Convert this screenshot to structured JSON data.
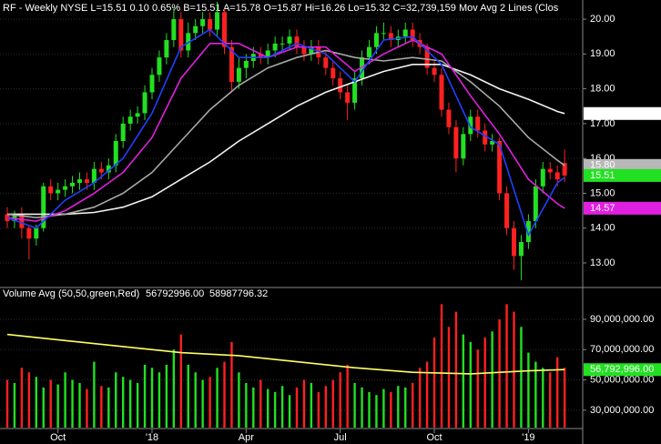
{
  "chart_data": {
    "type": "candlestick",
    "header": "RF - Weekly  NYSE  L=15.51  0.10  0.65%  B=15.51  A=15.78  O=15.87  Hi=16.26  Lo=15.32  C=32,739,159  Mov Avg 2 Lines (Clos",
    "header_color": "#22dd22",
    "categories": [
      null,
      null,
      null,
      null,
      null,
      null,
      null,
      "Oct",
      null,
      null,
      null,
      null,
      null,
      null,
      null,
      null,
      null,
      null,
      null,
      null,
      "'18",
      null,
      null,
      null,
      null,
      null,
      null,
      null,
      null,
      null,
      null,
      null,
      null,
      "Apr",
      null,
      null,
      null,
      null,
      null,
      null,
      null,
      null,
      null,
      null,
      null,
      null,
      "Jul",
      null,
      null,
      null,
      null,
      null,
      null,
      null,
      null,
      null,
      null,
      null,
      null,
      "Oct",
      null,
      null,
      null,
      null,
      null,
      null,
      null,
      null,
      null,
      null,
      null,
      null,
      "'19",
      null,
      null,
      null,
      null,
      null
    ],
    "open": [
      14.4,
      14.2,
      14.4,
      14.0,
      13.7,
      14.0,
      15.2,
      15.0,
      15.1,
      15.2,
      15.3,
      15.4,
      15.3,
      15.7,
      15.6,
      15.8,
      16.5,
      17.0,
      17.2,
      17.3,
      17.9,
      18.4,
      18.9,
      19.4,
      20.0,
      19.1,
      19.6,
      19.8,
      20.0,
      19.7,
      20.2,
      19.2,
      18.2,
      18.6,
      18.8,
      19.0,
      18.9,
      19.1,
      19.3,
      19.3,
      19.5,
      19.2,
      19.0,
      19.2,
      18.9,
      18.6,
      18.3,
      17.9,
      17.6,
      18.3,
      18.9,
      19.2,
      19.6,
      19.6,
      19.4,
      19.5,
      19.7,
      19.4,
      19.2,
      18.6,
      18.4,
      17.4,
      16.9,
      16.0,
      16.7,
      17.2,
      16.8,
      16.4,
      16.5,
      15.0,
      14.0,
      13.2,
      13.6,
      14.2,
      15.2,
      15.7,
      15.6,
      15.87
    ],
    "high": [
      14.6,
      14.5,
      14.6,
      14.1,
      14.1,
      15.3,
      15.4,
      15.3,
      15.4,
      15.5,
      15.6,
      15.6,
      15.9,
      15.9,
      16.0,
      16.7,
      17.2,
      17.4,
      17.5,
      18.1,
      18.6,
      19.1,
      19.6,
      20.3,
      20.2,
      19.9,
      20.0,
      20.2,
      20.2,
      20.5,
      20.3,
      19.4,
      18.9,
      19.0,
      19.2,
      19.2,
      19.3,
      19.5,
      19.5,
      19.7,
      19.7,
      19.4,
      19.4,
      19.4,
      19.1,
      18.8,
      18.5,
      18.1,
      18.5,
      19.1,
      19.4,
      19.8,
      19.9,
      19.8,
      19.7,
      19.9,
      19.9,
      19.6,
      19.3,
      18.8,
      18.6,
      17.6,
      17.1,
      16.9,
      17.4,
      17.4,
      17.0,
      16.7,
      16.6,
      15.2,
      14.2,
      13.8,
      14.4,
      15.4,
      15.9,
      15.9,
      15.8,
      16.26
    ],
    "low": [
      14.0,
      14.0,
      13.7,
      13.1,
      13.5,
      13.9,
      14.8,
      14.8,
      14.9,
      15.0,
      15.1,
      15.1,
      15.1,
      15.4,
      15.4,
      15.6,
      16.3,
      16.8,
      17.0,
      17.1,
      17.7,
      18.2,
      18.7,
      19.2,
      18.9,
      18.9,
      19.4,
      19.6,
      19.5,
      19.5,
      19.0,
      17.9,
      18.0,
      18.3,
      18.6,
      18.7,
      18.7,
      18.9,
      19.1,
      19.1,
      19.0,
      18.8,
      18.8,
      18.7,
      18.4,
      18.1,
      17.7,
      17.1,
      17.4,
      18.1,
      18.7,
      19.0,
      19.4,
      19.2,
      19.2,
      19.3,
      19.2,
      19.0,
      18.4,
      18.2,
      17.2,
      16.7,
      15.6,
      15.8,
      16.5,
      16.6,
      16.2,
      16.2,
      14.8,
      13.8,
      12.8,
      12.5,
      13.4,
      14.0,
      15.0,
      15.4,
      15.2,
      15.32
    ],
    "close": [
      14.2,
      14.4,
      14.0,
      13.7,
      14.0,
      15.2,
      15.0,
      15.1,
      15.2,
      15.3,
      15.4,
      15.3,
      15.7,
      15.6,
      15.8,
      16.5,
      17.0,
      17.2,
      17.3,
      17.9,
      18.4,
      18.9,
      19.4,
      20.0,
      19.1,
      19.6,
      19.8,
      20.0,
      19.7,
      20.2,
      19.2,
      18.2,
      18.6,
      18.8,
      19.0,
      18.9,
      19.1,
      19.3,
      19.3,
      19.5,
      19.2,
      19.0,
      19.2,
      18.9,
      18.6,
      18.3,
      17.9,
      17.6,
      18.3,
      18.9,
      19.2,
      19.6,
      19.6,
      19.4,
      19.5,
      19.7,
      19.4,
      19.2,
      18.6,
      18.4,
      17.4,
      16.9,
      16.0,
      16.7,
      17.2,
      16.8,
      16.4,
      16.5,
      15.0,
      14.0,
      13.2,
      13.6,
      14.2,
      15.2,
      15.7,
      15.6,
      15.4,
      15.51
    ],
    "up_color": "#22e022",
    "down_color": "#ff2020",
    "ylim": [
      12.32,
      20.55
    ],
    "yticks": [
      {
        "value": 13,
        "label": "13.00"
      },
      {
        "value": 14,
        "label": "14.00"
      },
      {
        "value": 15,
        "label": "15.00"
      },
      {
        "value": 16,
        "label": "16.00"
      },
      {
        "value": 17,
        "label": "17.00"
      },
      {
        "value": 18,
        "label": "18.00"
      },
      {
        "value": 19,
        "label": "19.00"
      },
      {
        "value": 20,
        "label": "20.00"
      }
    ],
    "grid": true,
    "grid_color": "#2a2a2a",
    "lines": [
      {
        "color": "#f2f2f2",
        "x": [
          0,
          4,
          8,
          12,
          16,
          20,
          24,
          28,
          32,
          36,
          40,
          44,
          48,
          52,
          56,
          60,
          64,
          68,
          72,
          76,
          77
        ],
        "values": [
          14.4,
          14.4,
          14.4,
          14.45,
          14.6,
          14.9,
          15.4,
          15.9,
          16.5,
          17.0,
          17.5,
          17.9,
          18.2,
          18.5,
          18.7,
          18.7,
          18.4,
          18.0,
          17.7,
          17.35,
          17.29
        ]
      },
      {
        "color": "#a8a8a8",
        "x": [
          0,
          4,
          8,
          12,
          16,
          20,
          24,
          28,
          32,
          36,
          40,
          44,
          48,
          52,
          56,
          60,
          64,
          68,
          72,
          76,
          77
        ],
        "values": [
          14.4,
          14.3,
          14.4,
          14.6,
          15.0,
          15.6,
          16.5,
          17.4,
          18.1,
          18.6,
          18.9,
          19.1,
          18.9,
          18.8,
          18.9,
          18.8,
          18.2,
          17.5,
          16.6,
          15.95,
          15.8
        ]
      },
      {
        "color": "#e020e0",
        "x": [
          0,
          4,
          8,
          12,
          16,
          20,
          24,
          28,
          32,
          36,
          40,
          44,
          48,
          52,
          56,
          60,
          64,
          68,
          72,
          76,
          77
        ],
        "values": [
          14.3,
          14.2,
          14.5,
          15.0,
          15.6,
          16.6,
          18.3,
          19.3,
          19.3,
          18.9,
          19.2,
          19.2,
          18.5,
          19.0,
          19.4,
          19.0,
          17.8,
          16.7,
          15.4,
          14.7,
          14.57
        ]
      },
      {
        "color": "#2040ff",
        "x": [
          0,
          4,
          8,
          12,
          16,
          20,
          24,
          28,
          32,
          36,
          40,
          44,
          48,
          52,
          56,
          60,
          64,
          68,
          72,
          76,
          77
        ],
        "values": [
          14.3,
          14.0,
          14.8,
          15.3,
          16.0,
          17.3,
          19.2,
          19.7,
          18.9,
          18.9,
          19.3,
          19.0,
          18.2,
          19.4,
          19.5,
          18.7,
          16.9,
          16.4,
          13.8,
          15.3,
          15.45
        ]
      }
    ],
    "flags": [
      {
        "value": 17.29,
        "label": "17.29",
        "color": "#ffffff",
        "text_color": "#000000"
      },
      {
        "value": 15.8,
        "label": "15.80",
        "color": "#b8b8b8",
        "text_color": "#000000"
      },
      {
        "value": 15.51,
        "label": "15.51",
        "color": "#22e022",
        "text_color": "#000000"
      },
      {
        "value": 14.57,
        "label": "14.57",
        "color": "#e020e0",
        "text_color": "#000000"
      }
    ],
    "volume": {
      "title": "Volume Avg (50,50,green,Red)",
      "stats": [
        {
          "text": "56792996.00",
          "color": "#22e022"
        },
        {
          "text": "58987796.32",
          "color": "#ffff40"
        }
      ],
      "values": [
        50000000,
        48000000,
        58000000,
        55000000,
        52000000,
        45000000,
        50000000,
        47000000,
        55000000,
        50000000,
        48000000,
        44000000,
        62000000,
        46000000,
        45000000,
        55000000,
        52000000,
        50000000,
        48000000,
        60000000,
        58000000,
        55000000,
        60000000,
        70000000,
        80000000,
        60000000,
        55000000,
        50000000,
        52000000,
        58000000,
        62000000,
        75000000,
        55000000,
        48000000,
        45000000,
        50000000,
        44000000,
        42000000,
        46000000,
        40000000,
        45000000,
        50000000,
        48000000,
        42000000,
        46000000,
        50000000,
        55000000,
        60000000,
        48000000,
        45000000,
        42000000,
        40000000,
        44000000,
        42000000,
        46000000,
        45000000,
        48000000,
        58000000,
        62000000,
        78000000,
        100000000,
        85000000,
        95000000,
        80000000,
        75000000,
        70000000,
        78000000,
        82000000,
        90000000,
        100000000,
        95000000,
        85000000,
        68000000,
        62000000,
        58000000,
        55000000,
        65000000,
        58000000
      ],
      "avg": {
        "color": "#ffff66",
        "x": [
          0,
          8,
          16,
          24,
          32,
          40,
          48,
          56,
          64,
          72,
          77
        ],
        "values": [
          80000000,
          76000000,
          72000000,
          68000000,
          66000000,
          62000000,
          58000000,
          55000000,
          54000000,
          56000000,
          56792996
        ]
      },
      "ylim": [
        18500000,
        109800000
      ],
      "yticks": [
        {
          "value": 30000000,
          "label": "30,000,000.00"
        },
        {
          "value": 50000000,
          "label": "50,000,000.00"
        },
        {
          "value": 70000000,
          "label": "70,000,000.00"
        },
        {
          "value": 90000000,
          "label": "90,000,000.00"
        }
      ],
      "flag": {
        "value": 56792996,
        "label": "56,792,996.00",
        "color": "#22e022",
        "text_color": "#000000"
      }
    }
  }
}
